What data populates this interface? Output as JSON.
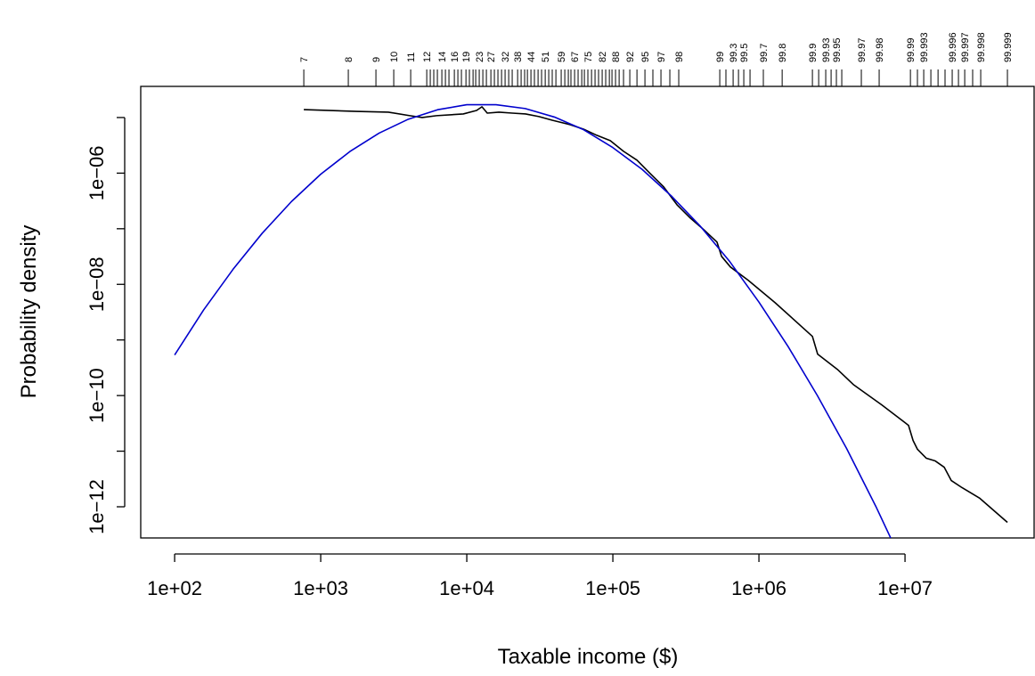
{
  "chart_data": {
    "type": "line",
    "xlabel": "Taxable income ($)",
    "ylabel": "Probability density",
    "xlog": true,
    "ylog": true,
    "xlim": [
      58.6,
      77600000
    ],
    "ylim": [
      2.75e-13,
      3.63e-05
    ],
    "xticks": [
      {
        "value": 100,
        "label": "1e+02"
      },
      {
        "value": 1000,
        "label": "1e+03"
      },
      {
        "value": 10000,
        "label": "1e+04"
      },
      {
        "value": 100000,
        "label": "1e+05"
      },
      {
        "value": 1000000,
        "label": "1e+06"
      },
      {
        "value": 10000000,
        "label": "1e+07"
      }
    ],
    "yticks": [
      {
        "value": 1e-06,
        "label": "1e−06"
      },
      {
        "value": 1e-08,
        "label": "1e−08"
      },
      {
        "value": 1e-10,
        "label": "1e−10"
      },
      {
        "value": 1e-12,
        "label": "1e−12"
      }
    ],
    "yticks_minor": [
      1e-05,
      1e-07,
      1e-09,
      1e-11
    ],
    "x2ticks": [
      {
        "value": 766,
        "label": "7"
      },
      {
        "value": 1545,
        "label": "8"
      },
      {
        "value": 2388,
        "label": "9"
      },
      {
        "value": 3162,
        "label": "10"
      },
      {
        "value": 4130,
        "label": "11"
      },
      {
        "value": 5320,
        "label": "12"
      },
      {
        "value": 6750,
        "label": "14"
      },
      {
        "value": 8220,
        "label": "16"
      },
      {
        "value": 9870,
        "label": "19"
      },
      {
        "value": 12170,
        "label": "23"
      },
      {
        "value": 14620,
        "label": "27"
      },
      {
        "value": 18290,
        "label": "32"
      },
      {
        "value": 22280,
        "label": "38"
      },
      {
        "value": 27490,
        "label": "44"
      },
      {
        "value": 34430,
        "label": "51"
      },
      {
        "value": 44290,
        "label": "59"
      },
      {
        "value": 54700,
        "label": "67"
      },
      {
        "value": 67450,
        "label": "75"
      },
      {
        "value": 84500,
        "label": "82"
      },
      {
        "value": 104300,
        "label": "88"
      },
      {
        "value": 130600,
        "label": "92"
      },
      {
        "value": 165800,
        "label": "95"
      },
      {
        "value": 213400,
        "label": "97"
      },
      {
        "value": 282500,
        "label": "98"
      },
      {
        "value": 539300,
        "label": "99"
      },
      {
        "value": 665700,
        "label": "99.3"
      },
      {
        "value": 787600,
        "label": "99.5"
      },
      {
        "value": 1072000,
        "label": "99.7"
      },
      {
        "value": 1442000,
        "label": "99.8"
      },
      {
        "value": 2323000,
        "label": "99.9"
      },
      {
        "value": 2866000,
        "label": "99.93"
      },
      {
        "value": 3390000,
        "label": "99.95"
      },
      {
        "value": 5023000,
        "label": "99.97"
      },
      {
        "value": 6653000,
        "label": "99.98"
      },
      {
        "value": 10890000,
        "label": "99.99"
      },
      {
        "value": 13430000,
        "label": "99.993"
      },
      {
        "value": 21040000,
        "label": "99.996"
      },
      {
        "value": 25630000,
        "label": "99.997"
      },
      {
        "value": 32980000,
        "label": "99.998"
      },
      {
        "value": 50240000,
        "label": "99.999"
      }
    ],
    "x2ticks_minor": [
      5623,
      5943,
      6290,
      7140,
      7550,
      8690,
      9190,
      10420,
      11040,
      11510,
      12880,
      13620,
      15450,
      16340,
      17300,
      19360,
      20460,
      23550,
      24890,
      26000,
      29040,
      30760,
      32510,
      36390,
      38460,
      40740,
      46880,
      49550,
      51640,
      57810,
      61240,
      63830,
      71450,
      75510,
      79800,
      89330,
      94620,
      98620,
      110400,
      118300,
      146200,
      187900,
      245500,
      594300,
      724400,
      868900,
      2564000,
      3119000,
      3690000,
      12160000,
      15030000,
      16830000,
      18790000,
      23220000,
      29040000
    ],
    "series": [
      {
        "color": "#000000",
        "x": [
          766,
          1754,
          2904,
          4074,
          4955,
          6209,
          9462,
          11670,
          12700,
          13810,
          16600,
          20460,
          25250,
          31190,
          38460,
          50930,
          62950,
          77620,
          95940,
          118300,
          146200,
          180300,
          222800,
          274800,
          338800,
          418800,
          516400,
          554600,
          638300,
          845300,
          1288000,
          2323000,
          2523000,
          3443000,
          4426000,
          6934000,
          10570000,
          11350000,
          12170000,
          14000000,
          16110000,
          18540000,
          20750000,
          24550000,
          32510000,
          50240000
        ],
        "values": [
          1.39e-05,
          1.29e-05,
          1.25e-05,
          1.08e-05,
          1e-05,
          1.08e-05,
          1.16e-05,
          1.34e-05,
          1.56e-05,
          1.2e-05,
          1.25e-05,
          1.2e-05,
          1.16e-05,
          1.04e-05,
          8.95e-06,
          7.45e-06,
          6.19e-06,
          4.79e-06,
          3.84e-06,
          2.47e-06,
          1.71e-06,
          9.82e-07,
          5.65e-07,
          2.7e-07,
          1.56e-07,
          9.64e-08,
          5.75e-08,
          3.19e-08,
          2.05e-08,
          1.18e-08,
          4.7e-09,
          1.16e-09,
          5.55e-10,
          2.96e-10,
          1.58e-10,
          6.79e-11,
          2.91e-11,
          1.56e-11,
          1.08e-11,
          7.45e-12,
          6.67e-12,
          5.15e-12,
          2.96e-12,
          2.21e-12,
          1.42e-12,
          5.25e-13
        ]
      },
      {
        "color": "#0000cd",
        "x": [
          100,
          158,
          251,
          398,
          631,
          1000,
          1585,
          2512,
          3981,
          6310,
          10000,
          15850,
          25120,
          39810,
          63100,
          100000,
          158500,
          251200,
          398100,
          631000,
          1000000,
          1585000,
          2512000,
          3981000,
          6310000,
          10000000
        ],
        "values": [
          5.37e-10,
          3.47e-09,
          1.86e-08,
          8.32e-08,
          3.09e-07,
          9.55e-07,
          2.45e-06,
          5.25e-06,
          9.33e-06,
          1.38e-05,
          1.7e-05,
          1.7e-05,
          1.45e-05,
          1.02e-05,
          6.03e-06,
          2.88e-06,
          1.17e-06,
          3.89e-07,
          1.1e-07,
          2.57e-08,
          4.79e-09,
          7.59e-10,
          1e-10,
          1.12e-11,
          1.02e-12,
          7.76e-14
        ]
      }
    ]
  }
}
